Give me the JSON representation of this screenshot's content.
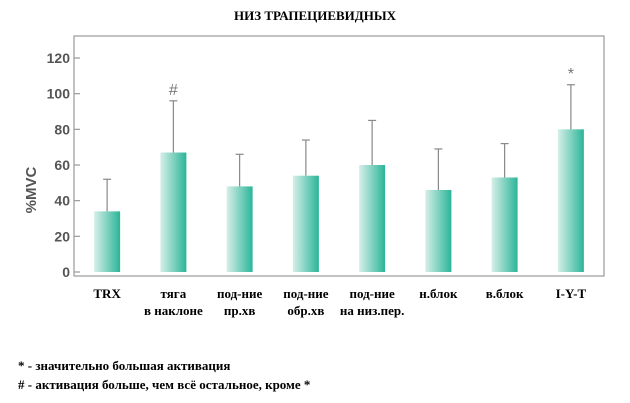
{
  "title": "НИЗ ТРАПЕЦИЕВИДНЫХ",
  "chart_data": {
    "type": "bar",
    "ylabel": "%MVC",
    "ylim": [
      0,
      120
    ],
    "yticks": [
      0,
      20,
      40,
      60,
      80,
      100,
      120
    ],
    "grid": false,
    "categories": [
      [
        "TRX"
      ],
      [
        "тяга",
        "в наклоне"
      ],
      [
        "под-ние",
        "пр.хв"
      ],
      [
        "под-ние",
        "обр.хв"
      ],
      [
        "под-ние",
        "на низ.пер."
      ],
      [
        "н.блок"
      ],
      [
        "в.блок"
      ],
      [
        "I-Y-T"
      ]
    ],
    "values": [
      34,
      67,
      48,
      54,
      60,
      46,
      53,
      80
    ],
    "error_upper": [
      52,
      96,
      66,
      74,
      85,
      69,
      72,
      105
    ],
    "annotations": [
      "",
      "#",
      "",
      "",
      "",
      "",
      "",
      "*"
    ],
    "bar_color": "#2bb598",
    "bar_color_light": "#d6efe9"
  },
  "footnotes": {
    "star": "* - значительно большая активация",
    "hash": "# - активация больше, чем всё остальное, кроме *"
  }
}
